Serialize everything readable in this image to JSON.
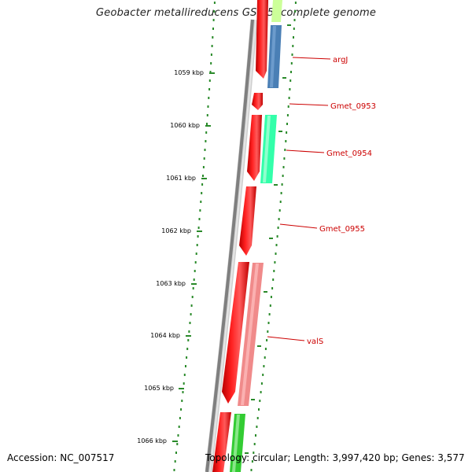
{
  "title": "Geobacter metallireducens GS-15, complete genome",
  "accession_text": "Accession: NC_007517",
  "topology_text": "Topology: circular; Length: 3,997,420 bp; Genes: 3,577",
  "colors": {
    "backbone_outer": "#7f7f7f",
    "backbone_inner": "#cfcfcf",
    "cds": "#ff0000",
    "tick": "#2a8a2a",
    "dots": "#2a8a2a",
    "label": "#cc0000",
    "argJ_band": "#4a7fb5",
    "Gmet_0954_band": "#33ffaa",
    "valS_band": "#f08a8a",
    "lower_band": "#33cc33",
    "top_band": "#ccff99"
  },
  "scale": {
    "unit": "kbp",
    "ticks": [
      {
        "label": "1059 kbp"
      },
      {
        "label": "1060 kbp"
      },
      {
        "label": "1061 kbp"
      },
      {
        "label": "1062 kbp"
      },
      {
        "label": "1063 kbp"
      },
      {
        "label": "1064 kbp"
      },
      {
        "label": "1065 kbp"
      },
      {
        "label": "1066 kbp"
      }
    ]
  },
  "genes": [
    {
      "name": "argJ"
    },
    {
      "name": "Gmet_0953"
    },
    {
      "name": "Gmet_0954"
    },
    {
      "name": "Gmet_0955"
    },
    {
      "name": "valS"
    }
  ]
}
